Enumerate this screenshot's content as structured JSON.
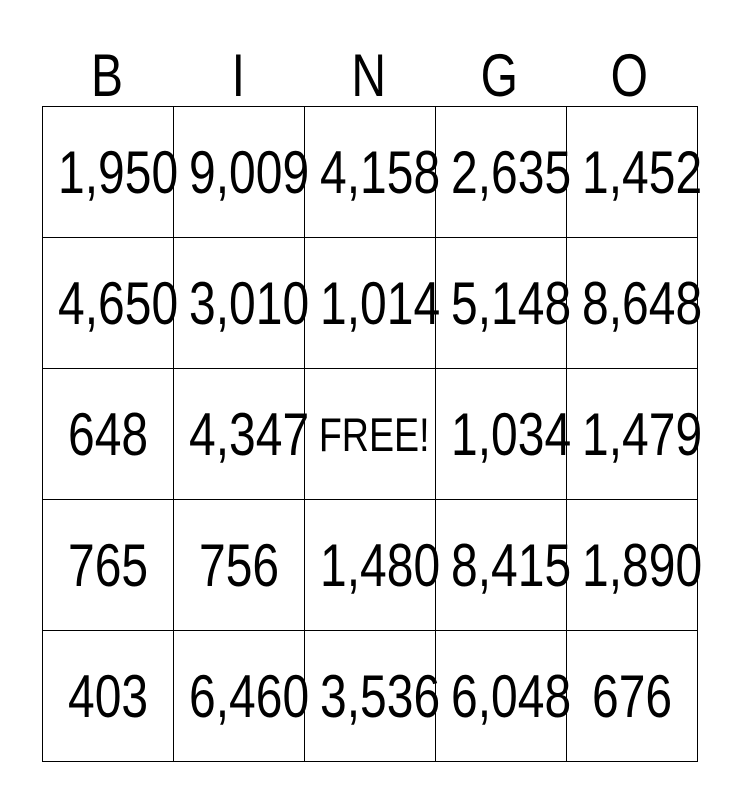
{
  "card": {
    "title": "BINGO",
    "header_letters": [
      "B",
      "I",
      "N",
      "G",
      "O"
    ],
    "rows": [
      [
        "1,950",
        "9,009",
        "4,158",
        "2,635",
        "1,452"
      ],
      [
        "4,650",
        "3,010",
        "1,014",
        "5,148",
        "8,648"
      ],
      [
        "648",
        "4,347",
        "FREE!",
        "1,034",
        "1,479"
      ],
      [
        "765",
        "756",
        "1,480",
        "8,415",
        "1,890"
      ],
      [
        "403",
        "6,460",
        "3,536",
        "6,048",
        "676"
      ]
    ],
    "free_cell": {
      "row": 3,
      "col": 3,
      "label": "FREE!"
    },
    "colors": {
      "background": "#ffffff",
      "grid_border": "#000000",
      "text": "#000000"
    }
  }
}
